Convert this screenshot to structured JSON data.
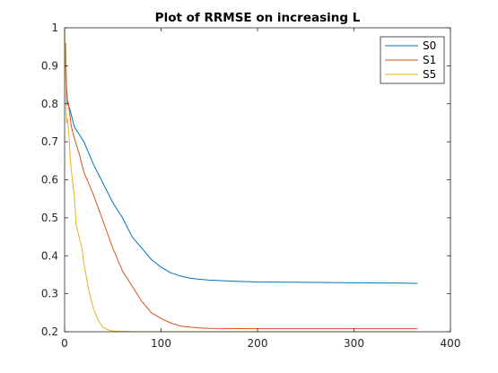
{
  "chart_data": {
    "type": "line",
    "title": "Plot of RRMSE on increasing L",
    "xlabel": "",
    "ylabel": "",
    "xlim": [
      0,
      400
    ],
    "ylim": [
      0.2,
      1.0
    ],
    "xticks": [
      0,
      100,
      200,
      300,
      400
    ],
    "xtick_labels": [
      "0",
      "100",
      "200",
      "300",
      "400"
    ],
    "yticks": [
      0.2,
      0.3,
      0.4,
      0.5,
      0.6,
      0.7,
      0.8,
      0.9,
      1.0
    ],
    "ytick_labels": [
      "0.2",
      "0.3",
      "0.4",
      "0.5",
      "0.6",
      "0.7",
      "0.8",
      "0.9",
      "1"
    ],
    "grid": false,
    "legend_position": "top-right",
    "series": [
      {
        "name": "S0",
        "color": "#0072BD",
        "x": [
          1,
          2,
          3,
          5,
          8,
          10,
          15,
          20,
          25,
          30,
          40,
          50,
          60,
          70,
          80,
          90,
          100,
          110,
          120,
          130,
          140,
          150,
          175,
          200,
          250,
          300,
          350,
          366
        ],
        "y": [
          0.92,
          0.84,
          0.8,
          0.79,
          0.76,
          0.74,
          0.72,
          0.7,
          0.67,
          0.64,
          0.59,
          0.54,
          0.5,
          0.45,
          0.42,
          0.39,
          0.37,
          0.355,
          0.347,
          0.341,
          0.338,
          0.336,
          0.333,
          0.331,
          0.33,
          0.329,
          0.328,
          0.327
        ]
      },
      {
        "name": "S1",
        "color": "#D95319",
        "x": [
          1,
          2,
          3,
          4,
          5,
          7,
          10,
          15,
          20,
          25,
          30,
          40,
          50,
          60,
          70,
          80,
          90,
          100,
          110,
          120,
          130,
          140,
          150,
          200,
          250,
          300,
          366
        ],
        "y": [
          0.96,
          0.84,
          0.81,
          0.8,
          0.78,
          0.74,
          0.71,
          0.67,
          0.62,
          0.59,
          0.56,
          0.49,
          0.42,
          0.36,
          0.32,
          0.28,
          0.25,
          0.235,
          0.223,
          0.215,
          0.212,
          0.21,
          0.209,
          0.208,
          0.208,
          0.208,
          0.208
        ]
      },
      {
        "name": "S5",
        "color": "#EDB120",
        "x": [
          0,
          1,
          2,
          3,
          4,
          5,
          6,
          8,
          10,
          12,
          15,
          18,
          20,
          25,
          30,
          35,
          40,
          45,
          50,
          60,
          70,
          100,
          200,
          300,
          366
        ],
        "y": [
          1.0,
          0.88,
          0.75,
          0.76,
          0.73,
          0.7,
          0.65,
          0.6,
          0.56,
          0.48,
          0.45,
          0.42,
          0.38,
          0.31,
          0.26,
          0.23,
          0.211,
          0.205,
          0.202,
          0.201,
          0.2,
          0.2,
          0.2,
          0.2,
          0.2
        ]
      }
    ]
  }
}
